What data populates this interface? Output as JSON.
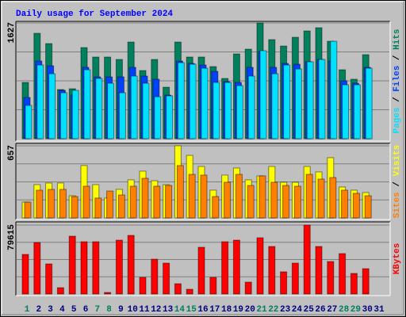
{
  "title": "Daily usage for September 2024",
  "legend_separator": " / ",
  "chart_data": [
    {
      "type": "bar",
      "ylim": [
        0,
        1627
      ],
      "yticks": [
        1627
      ],
      "grid_divisions": 4,
      "series": [
        {
          "name": "Hits",
          "color": "#00805c",
          "values": [
            791,
            1482,
            1337,
            691,
            702,
            1281,
            1148,
            1148,
            1114,
            1359,
            958,
            1114,
            724,
            1359,
            1148,
            1148,
            1014,
            847,
            1192,
            1259,
            1627,
            1393,
            1303,
            1426,
            1515,
            1560,
            1370,
            969,
            836,
            1181,
            null
          ]
        },
        {
          "name": "Files",
          "color": "#0040ff",
          "values": [
            579,
            1092,
            1025,
            680,
            613,
            1003,
            869,
            869,
            869,
            1003,
            880,
            836,
            613,
            1092,
            1058,
            1036,
            947,
            802,
            791,
            1003,
            1225,
            1003,
            1058,
            1047,
            1081,
            1114,
            1092,
            813,
            780,
            1003,
            null
          ]
        },
        {
          "name": "Pages",
          "color": "#00e0ff",
          "values": [
            468,
            1036,
            913,
            646,
            680,
            969,
            847,
            780,
            646,
            880,
            780,
            590,
            602,
            1069,
            1047,
            991,
            791,
            791,
            746,
            880,
            1237,
            913,
            1036,
            980,
            1081,
            1114,
            1370,
            758,
            758,
            991,
            null
          ]
        }
      ]
    },
    {
      "type": "bar",
      "ylim": [
        0,
        657
      ],
      "yticks": [
        657
      ],
      "grid_divisions": 4,
      "series": [
        {
          "name": "Visits",
          "color": "#ffff00",
          "values": [
            144,
            303,
            318,
            318,
            202,
            477,
            303,
            181,
            260,
            347,
            426,
            339,
            303,
            657,
            570,
            469,
            253,
            390,
            455,
            347,
            383,
            469,
            325,
            325,
            469,
            419,
            549,
            282,
            253,
            231,
            null
          ]
        },
        {
          "name": "Sites",
          "color": "#ff8000",
          "values": [
            144,
            253,
            260,
            260,
            195,
            289,
            181,
            245,
            209,
            289,
            361,
            289,
            296,
            477,
            397,
            390,
            195,
            325,
            397,
            296,
            383,
            325,
            296,
            289,
            397,
            354,
            368,
            253,
            224,
            202,
            null
          ]
        }
      ]
    },
    {
      "type": "bar",
      "ylim": [
        0,
        79615
      ],
      "yticks": [
        79615
      ],
      "grid_divisions": 4,
      "categories": [
        "1",
        "2",
        "3",
        "4",
        "5",
        "6",
        "7",
        "8",
        "9",
        "10",
        "11",
        "12",
        "13",
        "14",
        "15",
        "16",
        "17",
        "18",
        "19",
        "20",
        "21",
        "22",
        "23",
        "24",
        "25",
        "26",
        "27",
        "28",
        "29",
        "30",
        "31"
      ],
      "category_colors": [
        "#00805c",
        "#000080",
        "#000080",
        "#000080",
        "#000080",
        "#000080",
        "#00805c",
        "#00805c",
        "#000080",
        "#000080",
        "#000080",
        "#000080",
        "#000080",
        "#00805c",
        "#00805c",
        "#000080",
        "#000080",
        "#000080",
        "#000080",
        "#000080",
        "#00805c",
        "#00805c",
        "#000080",
        "#000080",
        "#000080",
        "#000080",
        "#000080",
        "#00805c",
        "#00805c",
        "#000080",
        "#000080"
      ],
      "series": [
        {
          "name": "KBytes",
          "color": "#ff0000",
          "values": [
            45750,
            59475,
            34770,
            7320,
            66795,
            60390,
            60390,
            1830,
            62220,
            67710,
            19215,
            40260,
            35685,
            11895,
            5490,
            53985,
            19215,
            60390,
            62220,
            13725,
            64965,
            54900,
            25620,
            35685,
            79615,
            54900,
            37515,
            46665,
            23790,
            29280,
            null
          ]
        }
      ]
    }
  ]
}
